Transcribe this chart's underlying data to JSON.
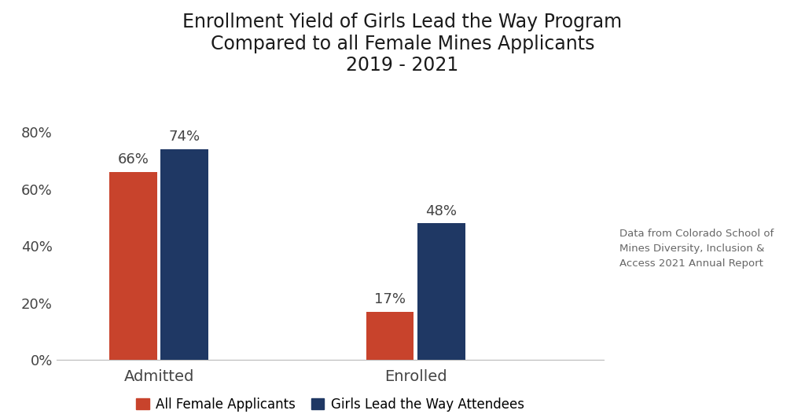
{
  "title": "Enrollment Yield of Girls Lead the Way Program\nCompared to all Female Mines Applicants\n2019 - 2021",
  "categories": [
    "Admitted",
    "Enrolled"
  ],
  "series": {
    "All Female Applicants": [
      66,
      17
    ],
    "Girls Lead the Way Attendees": [
      74,
      48
    ]
  },
  "colors": {
    "All Female Applicants": "#C8432C",
    "Girls Lead the Way Attendees": "#1F3864"
  },
  "ylim": [
    0,
    90
  ],
  "yticks": [
    0,
    20,
    40,
    60,
    80
  ],
  "ytick_labels": [
    "0%",
    "20%",
    "40%",
    "60%",
    "80%"
  ],
  "bar_width": 0.28,
  "title_fontsize": 17,
  "tick_fontsize": 13,
  "legend_fontsize": 12,
  "label_fontsize": 13,
  "annotation_text": "Data from Colorado School of\nMines Diversity, Inclusion &\nAccess 2021 Annual Report",
  "annotation_fontsize": 9.5,
  "background_color": "#ffffff",
  "group_positions": [
    1.0,
    2.5
  ],
  "xlim": [
    0.4,
    3.6
  ]
}
